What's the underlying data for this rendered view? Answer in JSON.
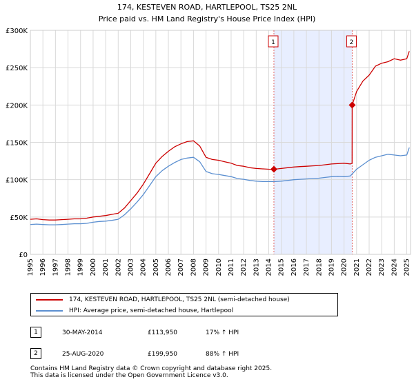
{
  "chart_data": {
    "type": "line",
    "title": "174, KESTEVEN ROAD, HARTLEPOOL, TS25 2NL",
    "subtitle": "Price paid vs. HM Land Registry's House Price Index (HPI)",
    "xlabel": "",
    "ylabel": "",
    "xlim": [
      1995,
      2025.3
    ],
    "ylim": [
      0,
      300000
    ],
    "y_ticks": [
      {
        "value": 0,
        "label": "£0"
      },
      {
        "value": 50000,
        "label": "£50K"
      },
      {
        "value": 100000,
        "label": "£100K"
      },
      {
        "value": 150000,
        "label": "£150K"
      },
      {
        "value": 200000,
        "label": "£200K"
      },
      {
        "value": 250000,
        "label": "£250K"
      },
      {
        "value": 300000,
        "label": "£300K"
      }
    ],
    "x_ticks": [
      "1995",
      "1996",
      "1997",
      "1998",
      "1999",
      "2000",
      "2001",
      "2002",
      "2003",
      "2004",
      "2005",
      "2006",
      "2007",
      "2008",
      "2009",
      "2010",
      "2011",
      "2012",
      "2013",
      "2014",
      "2015",
      "2016",
      "2017",
      "2018",
      "2019",
      "2020",
      "2021",
      "2022",
      "2023",
      "2024",
      "2025"
    ],
    "grid": true,
    "shaded_region": {
      "x_start": 2014.41,
      "x_end": 2020.65,
      "color": "#e8eeff"
    },
    "series": [
      {
        "name": "174, KESTEVEN ROAD, HARTLEPOOL, TS25 2NL (semi-detached house)",
        "color": "#cc0000",
        "x": [
          1995.0,
          1995.5,
          1996.0,
          1996.5,
          1997.0,
          1997.5,
          1998.0,
          1998.5,
          1999.0,
          1999.5,
          2000.0,
          2000.5,
          2001.0,
          2001.5,
          2002.0,
          2002.5,
          2003.0,
          2003.5,
          2004.0,
          2004.5,
          2005.0,
          2005.5,
          2006.0,
          2006.5,
          2007.0,
          2007.5,
          2008.0,
          2008.5,
          2009.0,
          2009.5,
          2010.0,
          2010.5,
          2011.0,
          2011.5,
          2012.0,
          2012.5,
          2013.0,
          2013.5,
          2014.0,
          2014.41,
          2015.0,
          2015.5,
          2016.0,
          2016.5,
          2017.0,
          2017.5,
          2018.0,
          2018.5,
          2019.0,
          2019.5,
          2020.0,
          2020.5,
          2020.64,
          2020.65,
          2021.0,
          2021.5,
          2022.0,
          2022.5,
          2023.0,
          2023.5,
          2024.0,
          2024.5,
          2025.0,
          2025.2
        ],
        "values": [
          47000,
          47500,
          46500,
          46000,
          46000,
          46500,
          47000,
          47500,
          47500,
          48500,
          50000,
          51000,
          52000,
          53500,
          55000,
          62000,
          72000,
          82000,
          94000,
          108000,
          122000,
          131000,
          138000,
          144000,
          148000,
          151000,
          152000,
          145000,
          130000,
          127000,
          126000,
          124000,
          122000,
          119000,
          118000,
          116000,
          115000,
          114500,
          114000,
          113950,
          115000,
          116000,
          117000,
          117500,
          118000,
          118500,
          119000,
          120000,
          121000,
          121500,
          122000,
          121000,
          122000,
          199950,
          218000,
          232000,
          240000,
          252000,
          256000,
          258000,
          262000,
          260000,
          262000,
          272000
        ]
      },
      {
        "name": "HPI: Average price, semi-detached house, Hartlepool",
        "color": "#5b8fd0",
        "x": [
          1995.0,
          1995.5,
          1996.0,
          1996.5,
          1997.0,
          1997.5,
          1998.0,
          1998.5,
          1999.0,
          1999.5,
          2000.0,
          2000.5,
          2001.0,
          2001.5,
          2002.0,
          2002.5,
          2003.0,
          2003.5,
          2004.0,
          2004.5,
          2005.0,
          2005.5,
          2006.0,
          2006.5,
          2007.0,
          2007.5,
          2008.0,
          2008.5,
          2009.0,
          2009.5,
          2010.0,
          2010.5,
          2011.0,
          2011.5,
          2012.0,
          2012.5,
          2013.0,
          2013.5,
          2014.0,
          2014.5,
          2015.0,
          2015.5,
          2016.0,
          2016.5,
          2017.0,
          2017.5,
          2018.0,
          2018.5,
          2019.0,
          2019.5,
          2020.0,
          2020.5,
          2021.0,
          2021.5,
          2022.0,
          2022.5,
          2023.0,
          2023.5,
          2024.0,
          2024.5,
          2025.0,
          2025.2
        ],
        "values": [
          40000,
          40500,
          40000,
          39500,
          39500,
          40000,
          40500,
          41000,
          41000,
          41500,
          43000,
          44000,
          44500,
          45500,
          47000,
          53000,
          61000,
          70000,
          80000,
          92000,
          104000,
          112000,
          118000,
          123000,
          127000,
          129000,
          130000,
          124000,
          111000,
          108000,
          107000,
          105500,
          104000,
          101500,
          100500,
          99000,
          98000,
          97500,
          97500,
          97500,
          98000,
          99000,
          100000,
          100500,
          101000,
          101500,
          102000,
          103000,
          104000,
          104500,
          104000,
          105000,
          114000,
          120000,
          126000,
          130000,
          132000,
          134000,
          133000,
          132000,
          133000,
          143000
        ]
      }
    ],
    "markers": [
      {
        "label": "1",
        "x": 2014.41,
        "value": 113950
      },
      {
        "label": "2",
        "x": 2020.65,
        "value": 199950
      }
    ]
  },
  "legend": {
    "items": [
      {
        "label": "174, KESTEVEN ROAD, HARTLEPOOL, TS25 2NL (semi-detached house)",
        "color": "#cc0000"
      },
      {
        "label": "HPI: Average price, semi-detached house, Hartlepool",
        "color": "#5b8fd0"
      }
    ]
  },
  "transactions": [
    {
      "num": "1",
      "date": "30-MAY-2014",
      "price": "£113,950",
      "hpi": "17% ↑ HPI"
    },
    {
      "num": "2",
      "date": "25-AUG-2020",
      "price": "£199,950",
      "hpi": "88% ↑ HPI"
    }
  ],
  "footer": {
    "line1": "Contains HM Land Registry data © Crown copyright and database right 2025.",
    "line2": "This data is licensed under the Open Government Licence v3.0."
  }
}
